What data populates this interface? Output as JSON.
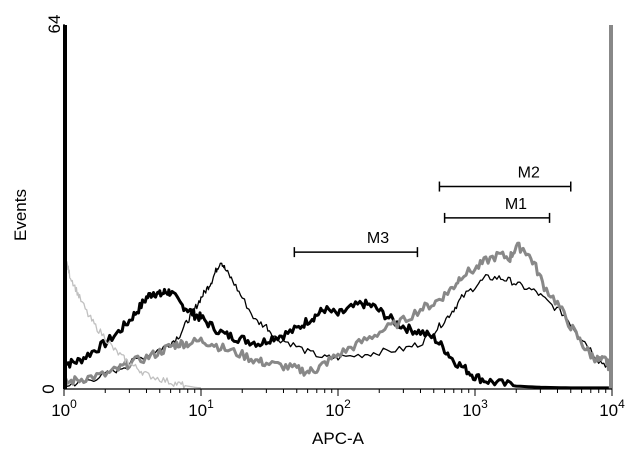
{
  "chart_data": {
    "type": "line",
    "xlabel": "APC-A",
    "ylabel": "Events",
    "x_scale": "log",
    "xlim": [
      1,
      10000
    ],
    "ylim": [
      0,
      64
    ],
    "x_ticks": [
      {
        "base": "10",
        "exp": "0",
        "value": 1
      },
      {
        "base": "10",
        "exp": "1",
        "value": 10
      },
      {
        "base": "10",
        "exp": "2",
        "value": 100
      },
      {
        "base": "10",
        "exp": "3",
        "value": 1000
      },
      {
        "base": "10",
        "exp": "4",
        "value": 10000
      }
    ],
    "y_ticks": [
      {
        "label": "0",
        "value": 0
      },
      {
        "label": "64",
        "value": 64
      }
    ],
    "grid": false,
    "legend": "none",
    "series": [
      {
        "color": "#000000",
        "style": "thick",
        "x": [
          1,
          1.1,
          1.3,
          1.6,
          2,
          2.5,
          3,
          3.5,
          4,
          4.5,
          5,
          5.5,
          6,
          7,
          8,
          9,
          10,
          12,
          15,
          18,
          22,
          27,
          33,
          40,
          50,
          60,
          70,
          80,
          100,
          120,
          150,
          180,
          220,
          270,
          330,
          400,
          500,
          600,
          700,
          850,
          1000,
          1200,
          1500,
          2000,
          3000,
          5000,
          9500
        ],
        "y": [
          5,
          4.5,
          5,
          6.5,
          8,
          10,
          12,
          14,
          16,
          17,
          16.5,
          17,
          17,
          15,
          14,
          13,
          12.5,
          11,
          9.5,
          9,
          8.5,
          8,
          9,
          9.5,
          10.5,
          12,
          13,
          14,
          13,
          14,
          15,
          14.5,
          13,
          11.5,
          10.5,
          10,
          9,
          7,
          5,
          3.5,
          2.2,
          1.5,
          1,
          0.5,
          0.3,
          0.2,
          0.2
        ]
      },
      {
        "color": "#000000",
        "style": "thin",
        "x": [
          1,
          1.2,
          1.5,
          2,
          2.5,
          3,
          4,
          5,
          6,
          7,
          8,
          9,
          10,
          11,
          12,
          13,
          14,
          15,
          17,
          20,
          25,
          30,
          35,
          45,
          60,
          80,
          100,
          150,
          200,
          300,
          400,
          500,
          600,
          700,
          800,
          1000,
          1200,
          1500,
          1800,
          2200,
          2800,
          3500,
          4500,
          5500,
          6500,
          8000,
          9500
        ],
        "y": [
          0.5,
          1,
          1.5,
          2.5,
          3.5,
          4.5,
          6,
          7,
          8,
          9.5,
          12,
          14,
          16,
          17.5,
          19,
          21,
          22.5,
          21,
          19,
          16,
          12,
          11,
          9,
          8,
          6.5,
          5.5,
          5.5,
          6,
          6.5,
          7,
          8,
          10,
          12,
          14,
          16,
          18,
          19.5,
          19.5,
          19,
          18,
          17,
          15,
          13,
          10,
          8,
          5,
          4
        ]
      },
      {
        "color": "#888888",
        "style": "thick",
        "x": [
          1,
          1.2,
          1.5,
          2,
          2.5,
          3,
          4,
          5,
          6,
          7,
          8,
          10,
          12,
          15,
          20,
          25,
          30,
          40,
          50,
          60,
          70,
          80,
          100,
          130,
          170,
          220,
          300,
          400,
          500,
          600,
          700,
          800,
          1000,
          1200,
          1500,
          1800,
          2000,
          2300,
          2700,
          3200,
          4000,
          5000,
          6000,
          7000,
          8000,
          9000,
          9500
        ],
        "y": [
          1,
          1.5,
          2,
          2.5,
          3.5,
          4.5,
          5.5,
          6.5,
          7.5,
          8,
          8,
          8.5,
          8,
          7,
          6,
          5,
          4.5,
          4,
          3.5,
          3,
          3.5,
          4.5,
          6,
          7.5,
          9,
          10.5,
          12,
          14,
          15,
          16.5,
          18,
          20,
          21,
          22.5,
          23.5,
          23,
          25,
          24.5,
          22,
          18,
          15,
          11,
          8,
          6,
          5,
          5,
          4
        ]
      },
      {
        "color": "#c0c0c0",
        "style": "thin",
        "x": [
          1,
          1.05,
          1.1,
          1.2,
          1.3,
          1.5,
          1.7,
          2,
          2.3,
          2.7,
          3,
          3.5,
          4,
          5,
          6,
          7,
          8,
          9,
          10
        ],
        "y": [
          23,
          22,
          20,
          18,
          16,
          13,
          11,
          9,
          7,
          5.5,
          4.5,
          3.5,
          2.5,
          1.8,
          1.2,
          0.8,
          0.5,
          0.3,
          0.2
        ]
      }
    ],
    "annotations": [
      {
        "label": "M1",
        "x_range": [
          600,
          3500
        ],
        "y": 30
      },
      {
        "label": "M2",
        "x_range": [
          550,
          5000
        ],
        "y": 35.5
      },
      {
        "label": "M3",
        "x_range": [
          48,
          380
        ],
        "y": 24
      }
    ]
  }
}
